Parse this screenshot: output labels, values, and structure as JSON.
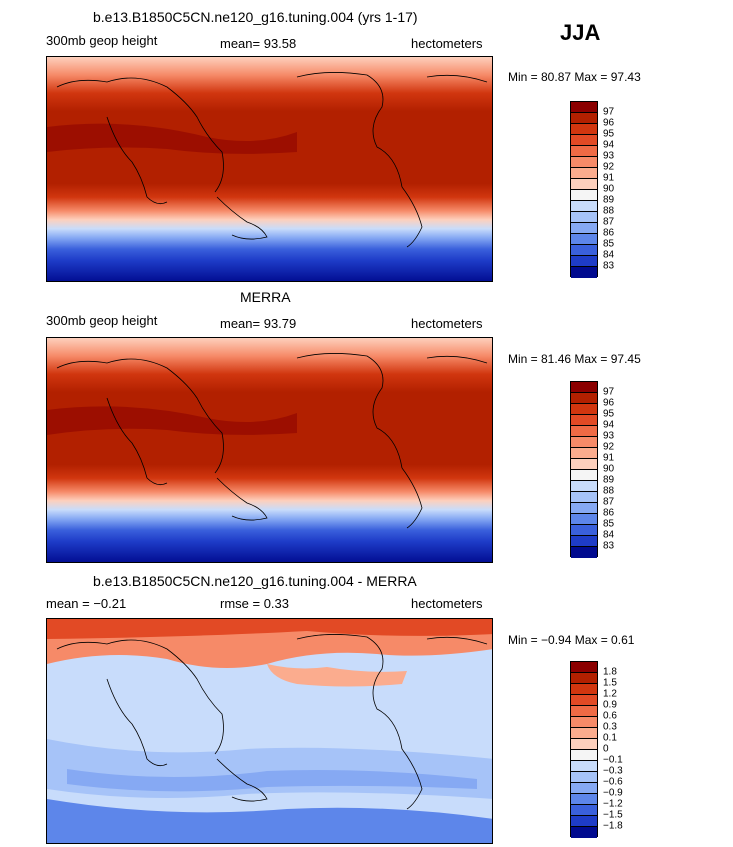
{
  "season": "JJA",
  "panels": [
    {
      "title": "b.e13.B1850C5CN.ne120_g16.tuning.004 (yrs 1-17)",
      "left_label": "300mb geop height",
      "mid_label": "mean=  93.58",
      "right_label": "hectometers",
      "minmax": "Min =  80.87 Max =  97.43"
    },
    {
      "title": "MERRA",
      "left_label": "300mb geop height",
      "mid_label": "mean=  93.79",
      "right_label": "hectometers",
      "minmax": "Min =  81.46 Max =  97.45"
    },
    {
      "title": "b.e13.B1850C5CN.ne120_g16.tuning.004 - MERRA",
      "left_label": "mean =  −0.21",
      "mid_label": "rmse =    0.33",
      "right_label": "hectometers",
      "minmax": "Min =  −0.94 Max =   0.61"
    }
  ],
  "colorbars": {
    "height": {
      "labels": [
        "97",
        "96",
        "95",
        "94",
        "93",
        "92",
        "91",
        "90",
        "89",
        "88",
        "87",
        "86",
        "85",
        "84",
        "83"
      ],
      "colors": [
        "#8b0000",
        "#b22000",
        "#d1360f",
        "#e24a25",
        "#ef6a45",
        "#f68a68",
        "#fbac8e",
        "#fdd0bd",
        "#f5f5f5",
        "#c8dcfb",
        "#a6c3f8",
        "#86a9f3",
        "#5d86ea",
        "#3a60dc",
        "#1e3cc8",
        "#000a8e"
      ]
    },
    "diff": {
      "labels": [
        "1.8",
        "1.5",
        "1.2",
        "0.9",
        "0.6",
        "0.3",
        "0.1",
        "0",
        "−0.1",
        "−0.3",
        "−0.6",
        "−0.9",
        "−1.2",
        "−1.5",
        "−1.8"
      ],
      "colors": [
        "#8b0000",
        "#b22000",
        "#d1360f",
        "#e24a25",
        "#ef6a45",
        "#f68a68",
        "#fbac8e",
        "#fdd0bd",
        "#f5f5f5",
        "#c8dcfb",
        "#a6c3f8",
        "#86a9f3",
        "#5d86ea",
        "#3a60dc",
        "#1e3cc8",
        "#000a8e"
      ]
    }
  }
}
